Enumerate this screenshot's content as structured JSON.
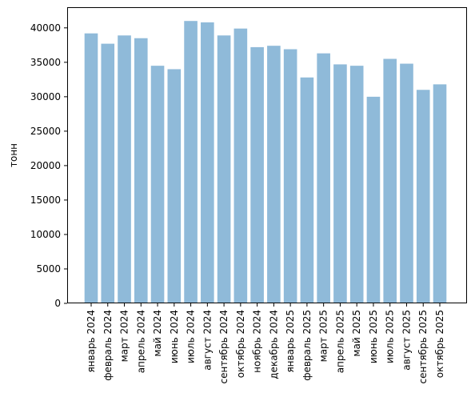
{
  "chart_data": {
    "type": "bar",
    "title": "",
    "xlabel": "",
    "ylabel": "тонн",
    "ylim": [
      0,
      43000
    ],
    "yticks": [
      0,
      5000,
      10000,
      15000,
      20000,
      25000,
      30000,
      35000,
      40000
    ],
    "bar_color": "#8fbad9",
    "grid": false,
    "categories": [
      "январь 2024",
      "февраль 2024",
      "март 2024",
      "апрель 2024",
      "май 2024",
      "июнь 2024",
      "июль 2024",
      "август 2024",
      "сентябрь 2024",
      "октябрь 2024",
      "ноябрь 2024",
      "декабрь 2024",
      "январь 2025",
      "февраль 2025",
      "март 2025",
      "апрель 2025",
      "май 2025",
      "июнь 2025",
      "июль 2025",
      "август 2025",
      "сентябрь 2025",
      "октябрь 2025"
    ],
    "values": [
      39200,
      37700,
      38900,
      38500,
      34500,
      34000,
      41000,
      40800,
      38900,
      39900,
      37200,
      37400,
      36900,
      32800,
      36300,
      34700,
      34500,
      30000,
      35500,
      34800,
      31000,
      31800
    ]
  }
}
